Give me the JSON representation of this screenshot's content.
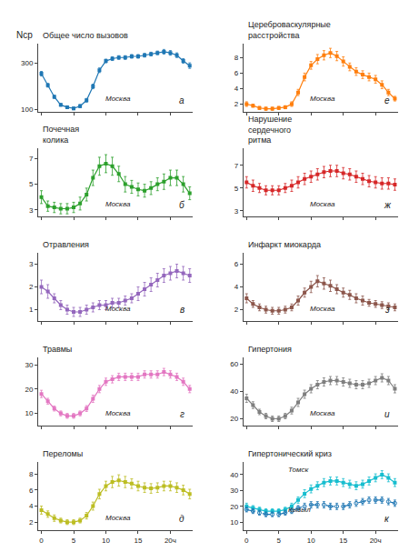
{
  "chart_data": [
    {
      "type": "line",
      "title": "Общее число вызовов",
      "ylabel": "Nср",
      "annotations": [
        "а"
      ],
      "x": [
        0,
        1,
        2,
        3,
        4,
        5,
        6,
        7,
        8,
        9,
        10,
        11,
        12,
        13,
        14,
        15,
        16,
        17,
        18,
        19,
        20,
        21,
        22,
        23
      ],
      "series": [
        {
          "name": "Москва",
          "marker": "square",
          "line_style": "solid",
          "values": [
            255,
            205,
            155,
            120,
            110,
            105,
            115,
            140,
            200,
            270,
            310,
            320,
            325,
            325,
            330,
            330,
            335,
            340,
            345,
            350,
            345,
            335,
            310,
            290
          ],
          "errors": [
            10,
            8,
            7,
            6,
            6,
            6,
            7,
            8,
            10,
            10,
            8,
            8,
            8,
            8,
            8,
            8,
            8,
            8,
            8,
            10,
            10,
            10,
            10,
            12
          ]
        }
      ],
      "xlim": [
        -0.5,
        23.5
      ],
      "xticks": [
        0,
        5,
        10,
        15,
        20
      ],
      "ylim": [
        90,
        385
      ],
      "yticks": [
        100,
        300
      ],
      "grid": false,
      "tick_labels": "y"
    },
    {
      "type": "line",
      "title": "Цереброваскулярные\nрасстройства",
      "annotations": [
        "е"
      ],
      "x": [
        0,
        1,
        2,
        3,
        4,
        5,
        6,
        7,
        8,
        9,
        10,
        11,
        12,
        13,
        14,
        15,
        16,
        17,
        18,
        19,
        20,
        21,
        22,
        23
      ],
      "series": [
        {
          "name": "Москва",
          "marker": "square",
          "line_style": "solid",
          "values": [
            2.0,
            1.8,
            1.5,
            1.4,
            1.4,
            1.5,
            1.6,
            2.0,
            3.5,
            5.5,
            7.0,
            7.8,
            8.3,
            8.6,
            8.2,
            7.5,
            6.8,
            6.2,
            5.8,
            5.5,
            5.2,
            4.5,
            3.5,
            2.7
          ],
          "errors": [
            0.3,
            0.2,
            0.2,
            0.2,
            0.2,
            0.2,
            0.2,
            0.3,
            0.4,
            0.5,
            0.5,
            0.6,
            0.6,
            0.6,
            0.6,
            0.6,
            0.5,
            0.5,
            0.5,
            0.5,
            0.5,
            0.5,
            0.4,
            0.3
          ]
        }
      ],
      "xlim": [
        -0.5,
        23.5
      ],
      "xticks": [
        0,
        5,
        10,
        15,
        20
      ],
      "ylim": [
        1,
        9.8
      ],
      "yticks": [
        2,
        4,
        6,
        8
      ],
      "grid": false,
      "tick_labels": "y"
    },
    {
      "type": "line",
      "title": "Почечная\nколика",
      "annotations": [
        "б"
      ],
      "x": [
        0,
        1,
        2,
        3,
        4,
        5,
        6,
        7,
        8,
        9,
        10,
        11,
        12,
        13,
        14,
        15,
        16,
        17,
        18,
        19,
        20,
        21,
        22,
        23
      ],
      "series": [
        {
          "name": "Москва",
          "marker": "square",
          "line_style": "solid",
          "values": [
            4.0,
            3.3,
            3.2,
            3.1,
            3.1,
            3.2,
            3.5,
            4.2,
            5.5,
            6.4,
            6.6,
            6.4,
            5.8,
            5.0,
            4.8,
            4.6,
            4.5,
            4.7,
            5.0,
            5.2,
            5.5,
            5.5,
            5.0,
            4.3
          ],
          "errors": [
            0.5,
            0.4,
            0.4,
            0.4,
            0.4,
            0.4,
            0.5,
            0.5,
            0.6,
            0.7,
            0.7,
            0.7,
            0.6,
            0.6,
            0.5,
            0.5,
            0.5,
            0.5,
            0.5,
            0.6,
            0.6,
            0.6,
            0.6,
            0.5
          ]
        }
      ],
      "xlim": [
        -0.5,
        23.5
      ],
      "xticks": [
        0,
        5,
        10,
        15,
        20
      ],
      "ylim": [
        2.5,
        7.8
      ],
      "yticks": [
        3,
        5,
        7
      ],
      "grid": false,
      "tick_labels": "y"
    },
    {
      "type": "line",
      "title": "Нарушение\nсердечного\nритма",
      "annotations": [
        "ж"
      ],
      "x": [
        0,
        1,
        2,
        3,
        4,
        5,
        6,
        7,
        8,
        9,
        10,
        11,
        12,
        13,
        14,
        15,
        16,
        17,
        18,
        19,
        20,
        21,
        22,
        23
      ],
      "series": [
        {
          "name": "Москва",
          "marker": "square",
          "line_style": "solid",
          "values": [
            5.5,
            5.2,
            5.0,
            4.8,
            4.8,
            4.8,
            5.0,
            5.2,
            5.5,
            5.8,
            6.0,
            6.2,
            6.4,
            6.5,
            6.5,
            6.3,
            6.2,
            6.0,
            5.8,
            5.6,
            5.5,
            5.4,
            5.4,
            5.3
          ],
          "errors": [
            0.5,
            0.5,
            0.4,
            0.4,
            0.4,
            0.4,
            0.4,
            0.5,
            0.5,
            0.5,
            0.5,
            0.5,
            0.5,
            0.5,
            0.5,
            0.5,
            0.5,
            0.5,
            0.5,
            0.5,
            0.5,
            0.5,
            0.5,
            0.5
          ]
        }
      ],
      "xlim": [
        -0.5,
        23.5
      ],
      "xticks": [
        0,
        5,
        10,
        15,
        20
      ],
      "ylim": [
        2.5,
        8.5
      ],
      "yticks": [
        3,
        5,
        7
      ],
      "grid": false,
      "tick_labels": "y"
    },
    {
      "type": "line",
      "title": "Отравления",
      "annotations": [
        "в"
      ],
      "x": [
        0,
        1,
        2,
        3,
        4,
        5,
        6,
        7,
        8,
        9,
        10,
        11,
        12,
        13,
        14,
        15,
        16,
        17,
        18,
        19,
        20,
        21,
        22,
        23
      ],
      "series": [
        {
          "name": "Москва",
          "marker": "square",
          "line_style": "solid",
          "values": [
            2.0,
            1.8,
            1.5,
            1.2,
            1.0,
            0.9,
            0.9,
            1.0,
            1.1,
            1.2,
            1.2,
            1.3,
            1.3,
            1.4,
            1.5,
            1.7,
            1.9,
            2.1,
            2.3,
            2.5,
            2.6,
            2.7,
            2.6,
            2.5
          ],
          "errors": [
            0.3,
            0.3,
            0.2,
            0.2,
            0.2,
            0.2,
            0.2,
            0.2,
            0.2,
            0.2,
            0.2,
            0.2,
            0.2,
            0.2,
            0.2,
            0.3,
            0.3,
            0.3,
            0.3,
            0.3,
            0.3,
            0.3,
            0.3,
            0.3
          ]
        }
      ],
      "xlim": [
        -0.5,
        23.5
      ],
      "xticks": [
        0,
        5,
        10,
        15,
        20
      ],
      "ylim": [
        0.5,
        3.5
      ],
      "yticks": [
        1,
        2,
        3
      ],
      "grid": false,
      "tick_labels": "y"
    },
    {
      "type": "line",
      "title": "Инфаркт миокарда",
      "annotations": [
        "з"
      ],
      "x": [
        0,
        1,
        2,
        3,
        4,
        5,
        6,
        7,
        8,
        9,
        10,
        11,
        12,
        13,
        14,
        15,
        16,
        17,
        18,
        19,
        20,
        21,
        22,
        23
      ],
      "series": [
        {
          "name": "Москва",
          "marker": "square",
          "line_style": "solid",
          "values": [
            3.0,
            2.5,
            2.2,
            2.0,
            1.9,
            1.9,
            2.0,
            2.2,
            2.8,
            3.5,
            4.0,
            4.5,
            4.3,
            4.1,
            3.8,
            3.5,
            3.3,
            3.0,
            2.8,
            2.6,
            2.5,
            2.4,
            2.3,
            2.2
          ],
          "errors": [
            0.4,
            0.3,
            0.3,
            0.3,
            0.3,
            0.3,
            0.3,
            0.3,
            0.4,
            0.4,
            0.5,
            0.5,
            0.5,
            0.5,
            0.4,
            0.4,
            0.4,
            0.4,
            0.4,
            0.3,
            0.3,
            0.3,
            0.3,
            0.3
          ]
        }
      ],
      "xlim": [
        -0.5,
        23.5
      ],
      "xticks": [
        0,
        5,
        10,
        15,
        20
      ],
      "ylim": [
        1.0,
        7.0
      ],
      "yticks": [
        2,
        4,
        6
      ],
      "grid": false,
      "tick_labels": "y"
    },
    {
      "type": "line",
      "title": "Травмы",
      "annotations": [
        "г"
      ],
      "x": [
        0,
        1,
        2,
        3,
        4,
        5,
        6,
        7,
        8,
        9,
        10,
        11,
        12,
        13,
        14,
        15,
        16,
        17,
        18,
        19,
        20,
        21,
        22,
        23
      ],
      "series": [
        {
          "name": "Москва",
          "marker": "square",
          "line_style": "solid",
          "values": [
            18,
            15,
            12,
            10,
            9,
            9,
            10,
            12,
            16,
            20,
            23,
            24,
            25,
            25,
            25,
            25,
            26,
            26,
            26,
            27,
            26,
            25,
            23,
            20
          ],
          "errors": [
            1.5,
            1.2,
            1.0,
            1.0,
            1.0,
            1.0,
            1.0,
            1.2,
            1.5,
            1.5,
            1.5,
            1.5,
            1.5,
            1.5,
            1.5,
            1.5,
            1.5,
            1.5,
            1.5,
            1.5,
            1.5,
            1.5,
            1.5,
            1.5
          ]
        }
      ],
      "xlim": [
        -0.5,
        23.5
      ],
      "xticks": [
        0,
        5,
        10,
        15,
        20
      ],
      "ylim": [
        5,
        33
      ],
      "yticks": [
        10,
        20,
        30
      ],
      "grid": false,
      "tick_labels": "y"
    },
    {
      "type": "line",
      "title": "Гипертония",
      "annotations": [
        "и"
      ],
      "x": [
        0,
        1,
        2,
        3,
        4,
        5,
        6,
        7,
        8,
        9,
        10,
        11,
        12,
        13,
        14,
        15,
        16,
        17,
        18,
        19,
        20,
        21,
        22,
        23
      ],
      "series": [
        {
          "name": "Москва",
          "marker": "square",
          "line_style": "solid",
          "values": [
            35,
            30,
            25,
            22,
            20,
            20,
            22,
            26,
            32,
            38,
            42,
            45,
            47,
            48,
            48,
            47,
            46,
            45,
            45,
            46,
            48,
            50,
            48,
            42
          ],
          "errors": [
            3,
            2.5,
            2,
            2,
            2,
            2,
            2,
            2.5,
            3,
            3,
            3,
            3,
            3,
            3,
            3,
            3,
            3,
            3,
            3,
            3,
            3,
            3,
            3,
            3
          ]
        }
      ],
      "xlim": [
        -0.5,
        23.5
      ],
      "xticks": [
        0,
        5,
        10,
        15,
        20
      ],
      "ylim": [
        15,
        65
      ],
      "yticks": [
        20,
        40,
        60
      ],
      "grid": false,
      "tick_labels": "y"
    },
    {
      "type": "line",
      "title": "Переломы",
      "annotations": [
        "д"
      ],
      "x": [
        0,
        1,
        2,
        3,
        4,
        5,
        6,
        7,
        8,
        9,
        10,
        11,
        12,
        13,
        14,
        15,
        16,
        17,
        18,
        19,
        20,
        21,
        22,
        23
      ],
      "series": [
        {
          "name": "Москва",
          "marker": "square",
          "line_style": "solid",
          "values": [
            3.5,
            3.0,
            2.5,
            2.2,
            2.0,
            2.0,
            2.2,
            2.8,
            4.0,
            5.5,
            6.5,
            7.0,
            7.2,
            7.0,
            6.8,
            6.5,
            6.3,
            6.2,
            6.3,
            6.5,
            6.5,
            6.3,
            6.0,
            5.5
          ],
          "errors": [
            0.5,
            0.4,
            0.4,
            0.3,
            0.3,
            0.3,
            0.3,
            0.4,
            0.5,
            0.6,
            0.6,
            0.7,
            0.7,
            0.7,
            0.6,
            0.6,
            0.6,
            0.6,
            0.6,
            0.6,
            0.6,
            0.6,
            0.6,
            0.6
          ]
        }
      ],
      "xlim": [
        -0.5,
        23.5
      ],
      "xticks": [
        0,
        5,
        10,
        15,
        {
          "value": 20,
          "label": "20ч"
        }
      ],
      "ylim": [
        1,
        9.5
      ],
      "yticks": [
        2,
        4,
        6,
        8
      ],
      "grid": false
    },
    {
      "type": "line",
      "title": "Гипертонический криз",
      "annotations": [
        "к"
      ],
      "x": [
        0,
        1,
        2,
        3,
        4,
        5,
        6,
        7,
        8,
        9,
        10,
        11,
        12,
        13,
        14,
        15,
        16,
        17,
        18,
        19,
        20,
        21,
        22,
        23
      ],
      "series": [
        {
          "name": "Томск",
          "marker": "square",
          "line_style": "solid",
          "values": [
            20,
            19,
            18,
            17,
            17,
            17,
            18,
            20,
            24,
            28,
            31,
            33,
            35,
            36,
            36,
            35,
            34,
            33,
            34,
            36,
            38,
            40,
            38,
            35
          ],
          "errors": [
            2,
            1.5,
            1.5,
            1.5,
            1.5,
            1.5,
            1.5,
            2,
            2,
            2.5,
            2.5,
            2.5,
            2.5,
            2.5,
            2.5,
            2.5,
            2.5,
            2.5,
            2.5,
            2.5,
            2.5,
            2.5,
            2.5,
            2.5
          ]
        },
        {
          "name": "Кызыл",
          "marker": "circle-open",
          "line_style": "dashed",
          "values": [
            18,
            17,
            16,
            15,
            15,
            15,
            16,
            17,
            19,
            20,
            21,
            21,
            21,
            20,
            20,
            20,
            21,
            22,
            23,
            24,
            24,
            24,
            23,
            22
          ],
          "errors": [
            1.5,
            1.5,
            1.5,
            1.5,
            1.5,
            1.5,
            1.5,
            1.5,
            1.5,
            2,
            2,
            2,
            2,
            2,
            2,
            2,
            2,
            2,
            2,
            2,
            2,
            2,
            2,
            2
          ]
        }
      ],
      "xlim": [
        -0.5,
        23.5
      ],
      "xticks": [
        0,
        5,
        10,
        15,
        {
          "value": 20,
          "label": "20ч"
        }
      ],
      "ylim": [
        5,
        48
      ],
      "yticks": [
        10,
        20,
        30,
        40
      ],
      "grid": false
    }
  ]
}
